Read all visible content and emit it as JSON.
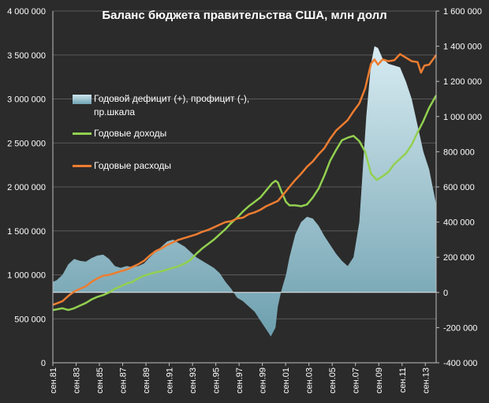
{
  "chart_data": {
    "type": "area+line",
    "title": "Баланс бюджета правительства США, млн долл",
    "left_axis": {
      "ylim": [
        0,
        4000000
      ],
      "ticks": [
        "4 000 000",
        "3 500 000",
        "3 000 000",
        "2 500 000",
        "2 000 000",
        "1 500 000",
        "1 000 000",
        "500 000",
        "0"
      ]
    },
    "right_axis": {
      "ylim": [
        -400000,
        1600000
      ],
      "ticks": [
        "1 600 000",
        "1 400 000",
        "1 200 000",
        "1 000 000",
        "800 000",
        "600 000",
        "400 000",
        "200 000",
        "0",
        "-200 000",
        "-400 000"
      ]
    },
    "x_ticks": [
      "сен.81",
      "сен.83",
      "сен.85",
      "сен.87",
      "сен.89",
      "сен.91",
      "сен.93",
      "сен.95",
      "сен.97",
      "сен.99",
      "сен.01",
      "сен.03",
      "сен.05",
      "сен.07",
      "сен.09",
      "сен.11",
      "сен.13"
    ],
    "x_range": [
      1981.67,
      2014.6
    ],
    "series": [
      {
        "name": "Годовой дефицит (+), профицит (-), пр.шкала",
        "type": "area",
        "axis": "right",
        "color": "#8fbccb",
        "x": [
          1981.7,
          1982.0,
          1982.5,
          1983.0,
          1983.5,
          1984.0,
          1984.5,
          1985.0,
          1985.5,
          1986.0,
          1986.5,
          1987.0,
          1987.5,
          1988.0,
          1988.5,
          1989.0,
          1989.5,
          1990.0,
          1990.5,
          1991.0,
          1991.5,
          1992.0,
          1992.5,
          1993.0,
          1993.5,
          1994.0,
          1994.5,
          1995.0,
          1995.5,
          1996.0,
          1996.5,
          1997.0,
          1997.5,
          1998.0,
          1998.5,
          1999.0,
          1999.5,
          2000.0,
          2000.4,
          2000.8,
          2001.0,
          2001.3,
          2001.7,
          2002.0,
          2002.5,
          2003.0,
          2003.5,
          2004.0,
          2004.5,
          2005.0,
          2005.5,
          2006.0,
          2006.5,
          2007.0,
          2007.5,
          2008.0,
          2008.3,
          2008.6,
          2009.0,
          2009.3,
          2009.6,
          2010.0,
          2010.5,
          2011.0,
          2011.5,
          2012.0,
          2012.5,
          2013.0,
          2013.5,
          2014.0,
          2014.6
        ],
        "values": [
          60000,
          70000,
          100000,
          160000,
          190000,
          180000,
          175000,
          195000,
          210000,
          215000,
          190000,
          150000,
          140000,
          150000,
          145000,
          150000,
          165000,
          200000,
          230000,
          260000,
          290000,
          300000,
          280000,
          260000,
          230000,
          200000,
          180000,
          160000,
          140000,
          110000,
          60000,
          20000,
          -30000,
          -50000,
          -80000,
          -110000,
          -160000,
          -210000,
          -250000,
          -200000,
          -80000,
          10000,
          100000,
          200000,
          330000,
          400000,
          430000,
          420000,
          380000,
          320000,
          270000,
          220000,
          180000,
          150000,
          200000,
          400000,
          700000,
          1000000,
          1300000,
          1400000,
          1390000,
          1330000,
          1300000,
          1290000,
          1280000,
          1200000,
          1100000,
          950000,
          800000,
          700000,
          500000
        ]
      },
      {
        "name": "Годовые доходы",
        "type": "line",
        "axis": "left",
        "color": "#92d050",
        "x": [
          1981.7,
          1982.5,
          1983.0,
          1983.5,
          1984.0,
          1984.5,
          1985.0,
          1985.5,
          1986.0,
          1986.5,
          1987.0,
          1987.5,
          1988.0,
          1988.5,
          1989.0,
          1989.5,
          1990.0,
          1990.5,
          1991.0,
          1991.5,
          1992.0,
          1992.5,
          1993.0,
          1993.5,
          1994.0,
          1994.5,
          1995.0,
          1995.5,
          1996.0,
          1996.5,
          1997.0,
          1997.5,
          1998.0,
          1998.5,
          1999.0,
          1999.5,
          2000.0,
          2000.5,
          2000.8,
          2001.0,
          2001.3,
          2001.7,
          2002.0,
          2002.5,
          2003.0,
          2003.5,
          2004.0,
          2004.5,
          2005.0,
          2005.5,
          2006.0,
          2006.5,
          2007.0,
          2007.5,
          2008.0,
          2008.5,
          2009.0,
          2009.5,
          2010.0,
          2010.5,
          2011.0,
          2011.5,
          2012.0,
          2012.5,
          2013.0,
          2013.5,
          2014.0,
          2014.6
        ],
        "values": [
          600000,
          620000,
          600000,
          620000,
          650000,
          680000,
          720000,
          750000,
          770000,
          800000,
          840000,
          870000,
          900000,
          920000,
          960000,
          990000,
          1010000,
          1030000,
          1040000,
          1060000,
          1080000,
          1100000,
          1130000,
          1170000,
          1240000,
          1300000,
          1350000,
          1400000,
          1460000,
          1520000,
          1590000,
          1650000,
          1720000,
          1780000,
          1830000,
          1880000,
          1960000,
          2040000,
          2070000,
          2050000,
          1950000,
          1830000,
          1790000,
          1790000,
          1780000,
          1800000,
          1880000,
          1980000,
          2130000,
          2300000,
          2420000,
          2530000,
          2560000,
          2580000,
          2520000,
          2400000,
          2150000,
          2080000,
          2120000,
          2170000,
          2260000,
          2320000,
          2380000,
          2480000,
          2620000,
          2750000,
          2900000,
          3040000
        ]
      },
      {
        "name": "Годовые расходы",
        "type": "line",
        "axis": "left",
        "color": "#ed7d31",
        "x": [
          1981.7,
          1982.5,
          1983.0,
          1983.5,
          1984.0,
          1984.5,
          1985.0,
          1985.5,
          1986.0,
          1986.5,
          1987.0,
          1987.5,
          1988.0,
          1988.5,
          1989.0,
          1989.5,
          1990.0,
          1990.5,
          1991.0,
          1991.5,
          1992.0,
          1992.5,
          1993.0,
          1993.5,
          1994.0,
          1994.5,
          1995.0,
          1995.5,
          1996.0,
          1996.5,
          1997.0,
          1997.5,
          1998.0,
          1998.5,
          1999.0,
          1999.5,
          2000.0,
          2000.5,
          2001.0,
          2001.5,
          2002.0,
          2002.5,
          2003.0,
          2003.5,
          2004.0,
          2004.5,
          2005.0,
          2005.5,
          2006.0,
          2006.5,
          2007.0,
          2007.5,
          2008.0,
          2008.5,
          2009.0,
          2009.3,
          2009.6,
          2010.0,
          2010.5,
          2011.0,
          2011.5,
          2012.0,
          2012.5,
          2013.0,
          2013.3,
          2013.6,
          2014.0,
          2014.6
        ],
        "values": [
          660000,
          700000,
          760000,
          810000,
          840000,
          870000,
          920000,
          960000,
          990000,
          1000000,
          1020000,
          1040000,
          1060000,
          1090000,
          1120000,
          1160000,
          1220000,
          1270000,
          1300000,
          1340000,
          1370000,
          1400000,
          1420000,
          1440000,
          1460000,
          1490000,
          1510000,
          1540000,
          1570000,
          1600000,
          1610000,
          1640000,
          1650000,
          1690000,
          1710000,
          1740000,
          1780000,
          1810000,
          1840000,
          1920000,
          2000000,
          2080000,
          2150000,
          2230000,
          2290000,
          2370000,
          2440000,
          2550000,
          2640000,
          2700000,
          2760000,
          2860000,
          2950000,
          3120000,
          3400000,
          3450000,
          3390000,
          3450000,
          3430000,
          3440000,
          3510000,
          3470000,
          3430000,
          3420000,
          3300000,
          3380000,
          3390000,
          3500000
        ]
      }
    ],
    "legend": [
      {
        "label": "Годовой дефицит (+), профицит (-), пр.шкала",
        "color": "#8fbccb"
      },
      {
        "label": "Годовые доходы",
        "color": "#92d050"
      },
      {
        "label": "Годовые расходы",
        "color": "#ed7d31"
      }
    ]
  }
}
